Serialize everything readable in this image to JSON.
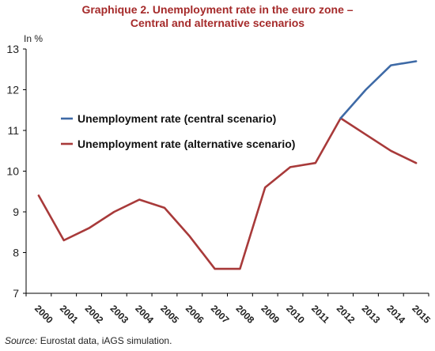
{
  "chart_data": {
    "type": "line",
    "title": "Graphique 2. Unemployment rate in the euro zone –",
    "subtitle": "Central and alternative scenarios",
    "ylabel": "In %",
    "xlabel": "",
    "ylim": [
      7,
      13
    ],
    "yticks": [
      7,
      8,
      9,
      10,
      11,
      12,
      13
    ],
    "categories": [
      "2000",
      "2001",
      "2002",
      "2003",
      "2004",
      "2005",
      "2006",
      "2007",
      "2008",
      "2009",
      "2010",
      "2011",
      "2012",
      "2013",
      "2014",
      "2015"
    ],
    "grid": false,
    "legend_placement": "top-left",
    "series": [
      {
        "name": "Unemployment rate (alternative scenario)",
        "color": "#a83a3a",
        "values": [
          9.4,
          8.3,
          8.6,
          9.0,
          9.3,
          9.1,
          8.4,
          7.6,
          7.6,
          9.6,
          10.1,
          10.2,
          11.3,
          10.9,
          10.5,
          10.2
        ]
      },
      {
        "name": "Unemployment rate (central scenario)",
        "color": "#3e6aa6",
        "values": [
          null,
          null,
          null,
          null,
          null,
          null,
          null,
          null,
          null,
          null,
          null,
          null,
          11.3,
          12.0,
          12.6,
          12.7
        ]
      }
    ],
    "legend_order": [
      1,
      0
    ]
  },
  "source": {
    "label": "Source:",
    "text": " Eurostat data, iAGS simulation."
  }
}
